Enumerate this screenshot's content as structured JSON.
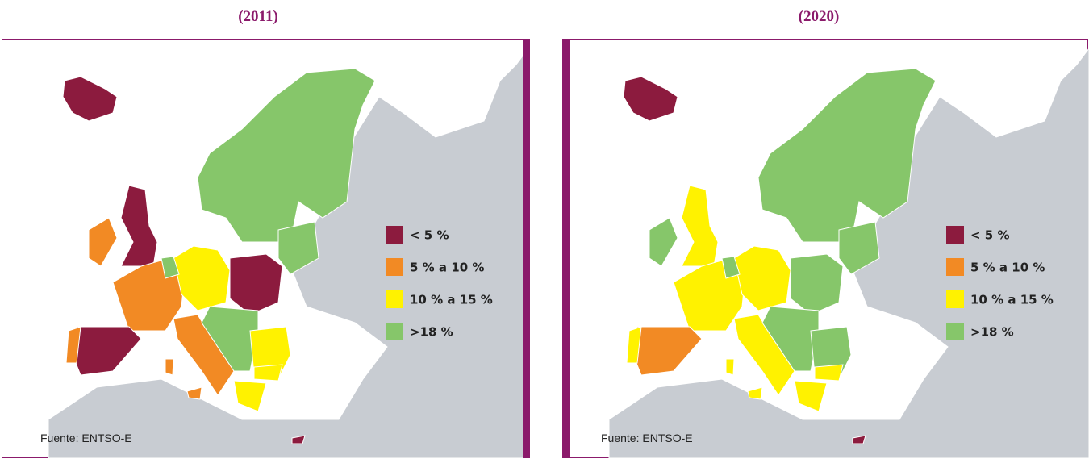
{
  "panels": [
    {
      "title": "(2011)",
      "source": "Fuente: ENTSO-E",
      "legend": [
        {
          "label": "< 5 %",
          "color": "#8c1b3e"
        },
        {
          "label": "5 % a 10 %",
          "color": "#f28a24"
        },
        {
          "label": "10 % a 15 %",
          "color": "#fff200"
        },
        {
          "label": ">18 %",
          "color": "#86c66a"
        }
      ]
    },
    {
      "title": "(2020)",
      "source": "Fuente: ENTSO-E",
      "legend": [
        {
          "label": "< 5 %",
          "color": "#8c1b3e"
        },
        {
          "label": "5 % a 10 %",
          "color": "#f28a24"
        },
        {
          "label": "10 % a 15 %",
          "color": "#fff200"
        },
        {
          "label": ">18 %",
          "color": "#86c66a"
        }
      ]
    }
  ]
}
